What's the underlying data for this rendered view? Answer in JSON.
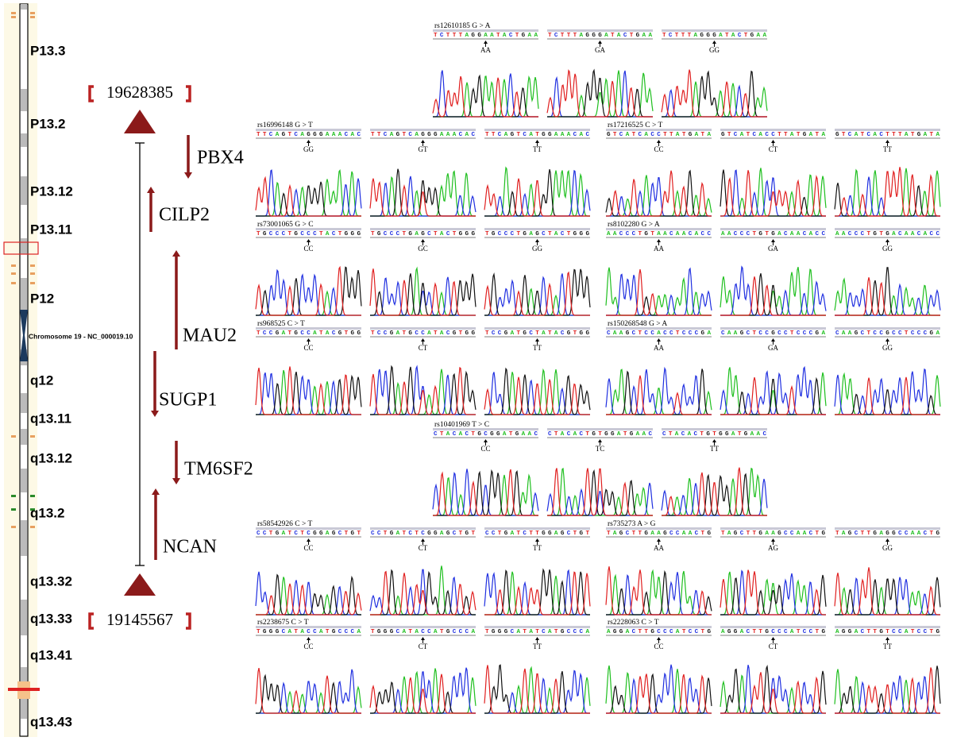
{
  "chromosome": {
    "label": "Chromosome 19 - NC_000019.10",
    "bands": [
      "P13.3",
      "P13.2",
      "P13.12",
      "P13.11",
      "P12",
      "q12",
      "q13.11",
      "q13.12",
      "q13.2",
      "q13.32",
      "q13.33",
      "q13.41",
      "q13.43"
    ]
  },
  "region": {
    "start": "19628385",
    "end": "19145567"
  },
  "genes": [
    "PBX4",
    "CILP2",
    "MAU2",
    "SUGP1",
    "TM6SF2",
    "NCAN"
  ],
  "snps": [
    {
      "label": "rs12610185 G > A",
      "panels": [
        {
          "sequence": "TCTTTAGGAATACTGAA",
          "genotype": "AA"
        },
        {
          "sequence": "TCTTTAGGGATACTGAA",
          "genotype": "GA"
        },
        {
          "sequence": "TCTTTAGGGATACTGAA",
          "genotype": "GG"
        }
      ]
    },
    {
      "label": "rs16996148 G > T",
      "panels": [
        {
          "sequence": "TTCAGTCAGGGAAACAC",
          "genotype": "GG"
        },
        {
          "sequence": "TTCAGTCAGGGAAACAC",
          "genotype": "GT"
        },
        {
          "sequence": "TTCAGTCATGGAAACAC",
          "genotype": "TT"
        }
      ]
    },
    {
      "label": "rs17216525 C > T",
      "panels": [
        {
          "sequence": "GTCATCACCTTATGATA",
          "genotype": "CC"
        },
        {
          "sequence": "GTCATCACCTTATGATA",
          "genotype": "CT"
        },
        {
          "sequence": "GTCATCACTTTATGATA",
          "genotype": "TT"
        }
      ]
    },
    {
      "label": "rs73001065 G > C",
      "panels": [
        {
          "sequence": "TGCCCTGCCCTACTGGG",
          "genotype": "CC"
        },
        {
          "sequence": "TGCCCTGAGCTACTGGG",
          "genotype": "GC"
        },
        {
          "sequence": "TGCCCTGAGCTACTGGG",
          "genotype": "GG"
        }
      ]
    },
    {
      "label": "rs8102280 G > A",
      "panels": [
        {
          "sequence": "AACCCTGTAACAACACC",
          "genotype": "AA"
        },
        {
          "sequence": "AACCCTGTGACAACACC",
          "genotype": "GA"
        },
        {
          "sequence": "AACCCTGTGACAACACC",
          "genotype": "GG"
        }
      ]
    },
    {
      "label": "rs968525 C > T",
      "panels": [
        {
          "sequence": "TCCGATGCCATACGTGG",
          "genotype": "CC"
        },
        {
          "sequence": "TCCGATGCCATACGTGG",
          "genotype": "CT"
        },
        {
          "sequence": "TCCGATGCTATACGTGG",
          "genotype": "TT"
        }
      ]
    },
    {
      "label": "rs150268548 G > A",
      "panels": [
        {
          "sequence": "CAAGCTCCACCTCCCGA",
          "genotype": "AA"
        },
        {
          "sequence": "CAAGCTCCGCCTCCCGA",
          "genotype": "GA"
        },
        {
          "sequence": "CAAGCTCCGCCTCCCGA",
          "genotype": "GG"
        }
      ]
    },
    {
      "label": "rs10401969 T > C",
      "panels": [
        {
          "sequence": "CTACACTGCGGATGAAC",
          "genotype": "CC"
        },
        {
          "sequence": "CTACACTGTGGATGAAC",
          "genotype": "TC"
        },
        {
          "sequence": "CTACACTGTGGATGAAC",
          "genotype": "TT"
        }
      ]
    },
    {
      "label": "rs58542926 C > T",
      "panels": [
        {
          "sequence": "CCTGATCTCGGAGCTGT",
          "genotype": "CC"
        },
        {
          "sequence": "CCTGATCTCGGAGCTGT",
          "genotype": "CT"
        },
        {
          "sequence": "CCTGATCTTGGAGCTGT",
          "genotype": "TT"
        }
      ]
    },
    {
      "label": "rs735273 A > G",
      "panels": [
        {
          "sequence": "TAGCTTGAAGCCAACTG",
          "genotype": "AA"
        },
        {
          "sequence": "TAGCTTGAAGCCAACTG",
          "genotype": "AG"
        },
        {
          "sequence": "TAGCTTGAGGCCAACTG",
          "genotype": "GG"
        }
      ]
    },
    {
      "label": "rs2238675 C > T",
      "panels": [
        {
          "sequence": "TGGGCATACCATGCCCA",
          "genotype": "CC"
        },
        {
          "sequence": "TGGGCATACCATGCCCA",
          "genotype": "CT"
        },
        {
          "sequence": "TGGGCATATCATGCCCA",
          "genotype": "TT"
        }
      ]
    },
    {
      "label": "rs2228063 C > T",
      "panels": [
        {
          "sequence": "AGGACTTGCCCATCCTG",
          "genotype": "CC"
        },
        {
          "sequence": "AGGACTTGCCCATCCTG",
          "genotype": "CT"
        },
        {
          "sequence": "AGGACTTGTCCATCCTG",
          "genotype": "TT"
        }
      ]
    }
  ]
}
